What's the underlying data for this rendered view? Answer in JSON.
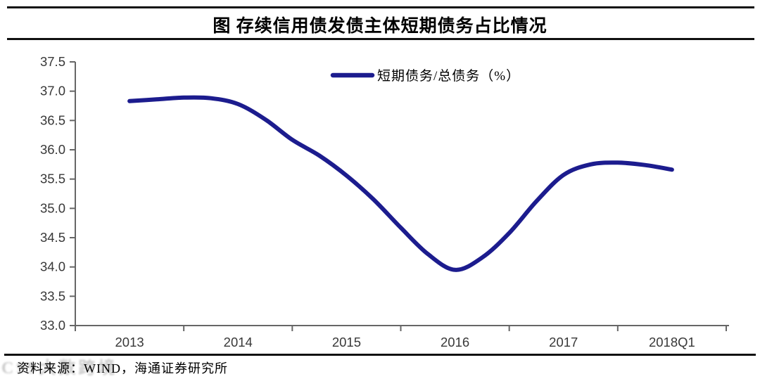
{
  "figure": {
    "title": "图  存续信用债发债主体短期债务占比情况",
    "source": "资料来源：WIND，海通证券研究所",
    "watermark": "C99大数跨境"
  },
  "colors": {
    "line": "#1c1c8e",
    "axis": "#666666",
    "tick_label": "#383838",
    "legend_text": "#000000",
    "rule": "#111111"
  },
  "chart_data": {
    "type": "line",
    "title": "图  存续信用债发债主体短期债务占比情况",
    "legend": [
      {
        "label": "短期债务/总债务（%）",
        "color": "#1c1c8e",
        "position": "top-center"
      }
    ],
    "x_tick_labels": [
      "2013",
      "2014",
      "2015",
      "2016",
      "2017",
      "2018Q1"
    ],
    "x": [
      "2013Q1",
      "2013Q2",
      "2013Q3",
      "2013Q4",
      "2014Q1",
      "2014Q2",
      "2014Q3",
      "2014Q4",
      "2015Q1",
      "2015Q2",
      "2015Q3",
      "2015Q4",
      "2016Q1",
      "2016Q2",
      "2016Q3",
      "2016Q4",
      "2017Q1",
      "2017Q2",
      "2017Q3",
      "2017Q4",
      "2018Q1"
    ],
    "series": [
      {
        "name": "短期债务/总债务（%）",
        "values": [
          36.83,
          36.86,
          36.89,
          36.88,
          36.78,
          36.52,
          36.17,
          35.9,
          35.56,
          35.15,
          34.67,
          34.22,
          33.95,
          34.16,
          34.58,
          35.12,
          35.57,
          35.75,
          35.78,
          35.74,
          35.66
        ]
      }
    ],
    "ylim": [
      33.0,
      37.5
    ],
    "y_tick_step": 0.5,
    "y_tick_labels": [
      "33.0",
      "33.5",
      "34.0",
      "34.5",
      "35.0",
      "35.5",
      "36.0",
      "36.5",
      "37.0",
      "37.5"
    ],
    "grid": false,
    "legend_position": "top-center"
  }
}
